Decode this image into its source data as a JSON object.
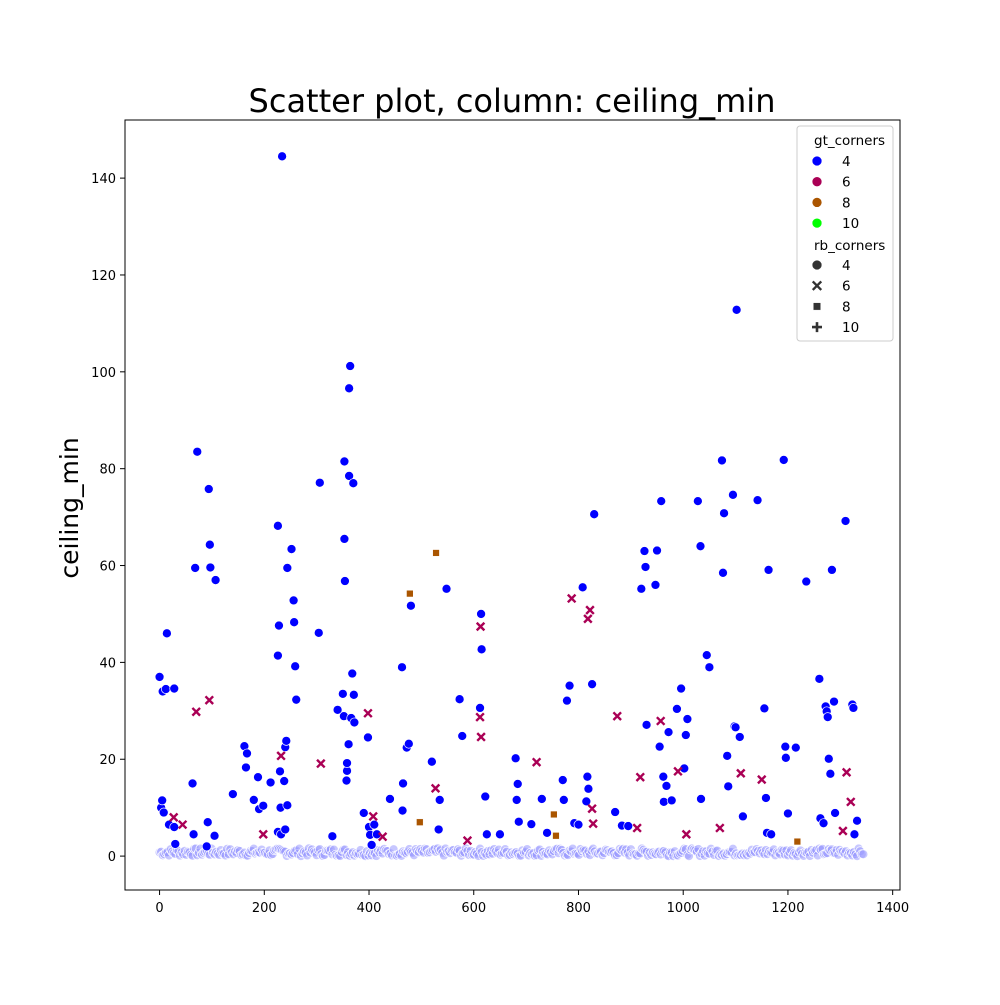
{
  "chart_data": {
    "type": "scatter",
    "title": "Scatter plot, column: ceiling_min",
    "xlabel": "",
    "ylabel": "ceiling_min",
    "xlim": [
      -66,
      1414
    ],
    "ylim": [
      -7,
      152
    ],
    "xticks": [
      0,
      200,
      400,
      600,
      800,
      1000,
      1200,
      1400
    ],
    "yticks": [
      0,
      20,
      40,
      60,
      80,
      100,
      120,
      140
    ],
    "grid": false,
    "legend_position": "top-right",
    "hue": {
      "title": "gt_corners",
      "entries": [
        {
          "value": "4",
          "color": "#0000ff"
        },
        {
          "value": "6",
          "color": "#aa0055"
        },
        {
          "value": "8",
          "color": "#aa5500"
        },
        {
          "value": "10",
          "color": "#00ff00"
        }
      ]
    },
    "style": {
      "title": "rb_corners",
      "entries": [
        {
          "value": "4",
          "marker": "circle"
        },
        {
          "value": "6",
          "marker": "x"
        },
        {
          "value": "8",
          "marker": "square"
        },
        {
          "value": "10",
          "marker": "plus"
        }
      ]
    },
    "series": [
      {
        "gt": "4",
        "rb": "4",
        "marker": "circle",
        "color": "#0000ff",
        "points": [
          [
            0,
            37
          ],
          [
            3,
            10
          ],
          [
            5,
            11.5
          ],
          [
            6,
            34
          ],
          [
            8,
            9
          ],
          [
            12,
            34.5
          ],
          [
            14,
            46
          ],
          [
            18,
            6.5
          ],
          [
            28,
            34.6
          ],
          [
            28,
            6
          ],
          [
            30,
            2.5
          ],
          [
            63,
            15
          ],
          [
            65,
            4.5
          ],
          [
            68,
            59.5
          ],
          [
            72,
            83.5
          ],
          [
            90,
            2
          ],
          [
            92,
            7
          ],
          [
            94,
            75.8
          ],
          [
            96,
            64.3
          ],
          [
            97,
            59.6
          ],
          [
            107,
            57
          ],
          [
            105,
            4.2
          ],
          [
            140,
            12.8
          ],
          [
            162,
            22.7
          ],
          [
            165,
            18.3
          ],
          [
            167,
            21.2
          ],
          [
            180,
            11.6
          ],
          [
            188,
            16.3
          ],
          [
            190,
            9.7
          ],
          [
            198,
            10.4
          ],
          [
            212,
            15.2
          ],
          [
            226,
            68.2
          ],
          [
            228,
            47.6
          ],
          [
            226,
            41.4
          ],
          [
            230,
            17.5
          ],
          [
            231,
            10
          ],
          [
            234,
            144.5
          ],
          [
            238,
            15.5
          ],
          [
            240,
            22.5
          ],
          [
            242,
            23.8
          ],
          [
            244,
            10.5
          ],
          [
            244,
            59.5
          ],
          [
            252,
            63.4
          ],
          [
            256,
            52.8
          ],
          [
            257,
            48.3
          ],
          [
            259,
            39.2
          ],
          [
            261,
            32.3
          ],
          [
            226,
            5
          ],
          [
            232,
            4.5
          ],
          [
            240,
            5.5
          ],
          [
            304,
            46.1
          ],
          [
            306,
            77.1
          ],
          [
            330,
            4.1
          ],
          [
            340,
            30.2
          ],
          [
            350,
            33.5
          ],
          [
            353,
            81.5
          ],
          [
            353,
            65.5
          ],
          [
            354,
            56.8
          ],
          [
            352,
            28.9
          ],
          [
            357,
            15.6
          ],
          [
            358,
            17.6
          ],
          [
            358,
            19.2
          ],
          [
            361,
            23.1
          ],
          [
            362,
            96.6
          ],
          [
            364,
            101.2
          ],
          [
            362,
            78.5
          ],
          [
            366,
            28.5
          ],
          [
            368,
            37.7
          ],
          [
            370,
            77
          ],
          [
            371,
            33.3
          ],
          [
            372,
            27.6
          ],
          [
            390,
            8.9
          ],
          [
            398,
            24.5
          ],
          [
            400,
            6
          ],
          [
            402,
            4.4
          ],
          [
            405,
            2.3
          ],
          [
            410,
            6.5
          ],
          [
            415,
            4.5
          ],
          [
            440,
            11.8
          ],
          [
            463,
            39
          ],
          [
            464,
            9.4
          ],
          [
            465,
            15
          ],
          [
            472,
            22.4
          ],
          [
            476,
            23.2
          ],
          [
            480,
            51.7
          ],
          [
            520,
            19.5
          ],
          [
            533,
            5.5
          ],
          [
            535,
            11.6
          ],
          [
            548,
            55.2
          ],
          [
            573,
            32.4
          ],
          [
            578,
            24.8
          ],
          [
            612,
            30.6
          ],
          [
            614,
            50
          ],
          [
            615,
            42.7
          ],
          [
            622,
            12.3
          ],
          [
            625,
            4.5
          ],
          [
            650,
            4.5
          ],
          [
            680,
            20.2
          ],
          [
            684,
            14.9
          ],
          [
            682,
            11.6
          ],
          [
            686,
            7.1
          ],
          [
            710,
            6.6
          ],
          [
            730,
            11.8
          ],
          [
            740,
            4.8
          ],
          [
            770,
            15.7
          ],
          [
            772,
            11.6
          ],
          [
            778,
            32.1
          ],
          [
            783,
            35.2
          ],
          [
            792,
            6.8
          ],
          [
            800,
            6.5
          ],
          [
            808,
            55.5
          ],
          [
            815,
            11.3
          ],
          [
            817,
            16.4
          ],
          [
            819,
            13.9
          ],
          [
            826,
            35.5
          ],
          [
            830,
            70.6
          ],
          [
            870,
            9.1
          ],
          [
            883,
            6.3
          ],
          [
            895,
            6.2
          ],
          [
            920,
            55.2
          ],
          [
            926,
            63
          ],
          [
            928,
            59.7
          ],
          [
            930,
            27.1
          ],
          [
            947,
            56
          ],
          [
            950,
            63.1
          ],
          [
            955,
            22.6
          ],
          [
            958,
            73.3
          ],
          [
            962,
            16.4
          ],
          [
            963,
            11.2
          ],
          [
            968,
            14.5
          ],
          [
            972,
            25.6
          ],
          [
            978,
            11.5
          ],
          [
            988,
            30.4
          ],
          [
            996,
            34.6
          ],
          [
            1002,
            18.1
          ],
          [
            1005,
            25
          ],
          [
            1008,
            28.3
          ],
          [
            1028,
            73.3
          ],
          [
            1033,
            64
          ],
          [
            1034,
            11.8
          ],
          [
            1045,
            41.5
          ],
          [
            1050,
            39
          ],
          [
            1074,
            81.7
          ],
          [
            1076,
            58.5
          ],
          [
            1078,
            70.8
          ],
          [
            1084,
            20.7
          ],
          [
            1086,
            14.4
          ],
          [
            1095,
            74.6
          ],
          [
            1098,
            26.8
          ],
          [
            1100,
            26.6
          ],
          [
            1102,
            112.8
          ],
          [
            1108,
            24.6
          ],
          [
            1114,
            8.2
          ],
          [
            1142,
            73.5
          ],
          [
            1155,
            30.5
          ],
          [
            1158,
            12
          ],
          [
            1160,
            4.8
          ],
          [
            1163,
            59.1
          ],
          [
            1168,
            4.5
          ],
          [
            1192,
            81.8
          ],
          [
            1195,
            22.6
          ],
          [
            1196,
            20.3
          ],
          [
            1200,
            8.8
          ],
          [
            1215,
            22.4
          ],
          [
            1235,
            56.7
          ],
          [
            1260,
            36.6
          ],
          [
            1262,
            7.8
          ],
          [
            1268,
            6.8
          ],
          [
            1272,
            30.9
          ],
          [
            1274,
            29.9
          ],
          [
            1276,
            28.7
          ],
          [
            1278,
            20.1
          ],
          [
            1281,
            17
          ],
          [
            1284,
            59.1
          ],
          [
            1288,
            31.9
          ],
          [
            1290,
            8.9
          ],
          [
            1310,
            69.2
          ],
          [
            1323,
            31.3
          ],
          [
            1325,
            30.6
          ],
          [
            1327,
            4.5
          ],
          [
            1332,
            7.3
          ]
        ]
      },
      {
        "gt": "6",
        "rb": "6",
        "marker": "x",
        "color": "#aa0055",
        "points": [
          [
            27,
            8
          ],
          [
            44,
            6.5
          ],
          [
            70,
            29.8
          ],
          [
            95,
            32.2
          ],
          [
            198,
            4.5
          ],
          [
            232,
            20.7
          ],
          [
            308,
            19.1
          ],
          [
            398,
            29.5
          ],
          [
            408,
            8.2
          ],
          [
            426,
            4
          ],
          [
            527,
            14
          ],
          [
            588,
            3.2
          ],
          [
            612,
            28.7
          ],
          [
            613,
            47.4
          ],
          [
            614,
            24.6
          ],
          [
            720,
            19.4
          ],
          [
            787,
            53.2
          ],
          [
            818,
            49
          ],
          [
            822,
            50.8
          ],
          [
            826,
            9.8
          ],
          [
            828,
            6.7
          ],
          [
            874,
            28.9
          ],
          [
            912,
            5.8
          ],
          [
            918,
            16.3
          ],
          [
            957,
            27.9
          ],
          [
            990,
            17.5
          ],
          [
            1006,
            4.5
          ],
          [
            1070,
            5.8
          ],
          [
            1110,
            17.1
          ],
          [
            1150,
            15.8
          ],
          [
            1305,
            5.2
          ],
          [
            1312,
            17.3
          ],
          [
            1320,
            11.2
          ]
        ]
      },
      {
        "gt": "8",
        "rb": "8",
        "marker": "square",
        "color": "#aa5500",
        "points": [
          [
            478,
            54.2
          ],
          [
            497,
            7
          ],
          [
            528,
            62.6
          ],
          [
            753,
            8.6
          ],
          [
            757,
            4.2
          ],
          [
            1218,
            3
          ]
        ]
      }
    ]
  }
}
